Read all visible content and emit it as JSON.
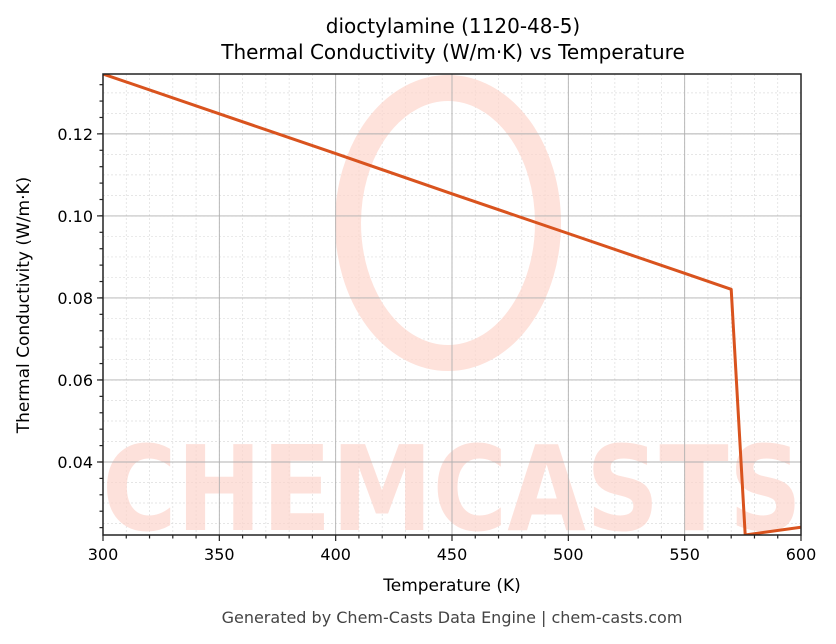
{
  "title_line1": "dioctylamine (1120-48-5)",
  "title_line2": "Thermal Conductivity (W/m·K) vs Temperature",
  "xlabel": "Temperature (K)",
  "ylabel": "Thermal Conductivity (W/m·K)",
  "footer": "Generated by Chem-Casts Data Engine | chem-casts.com",
  "watermark": "CHEMCASTS",
  "colors": {
    "line": "#d9531e",
    "watermark": "#fdd5cc",
    "grid_major": "#b0b0b0",
    "grid_minor": "#dddddd",
    "axis": "#222222"
  },
  "chart_data": {
    "type": "line",
    "title": "dioctylamine (1120-48-5) Thermal Conductivity (W/m·K) vs Temperature",
    "xlabel": "Temperature (K)",
    "ylabel": "Thermal Conductivity (W/m·K)",
    "xlim": [
      300,
      600
    ],
    "ylim": [
      0.0222,
      0.1346
    ],
    "x_ticks": [
      300,
      350,
      400,
      450,
      500,
      550,
      600
    ],
    "x_tick_labels": [
      "300",
      "350",
      "400",
      "450",
      "500",
      "550",
      "600"
    ],
    "y_ticks": [
      0.04,
      0.06,
      0.08,
      0.1,
      0.12
    ],
    "y_tick_labels": [
      "0.04",
      "0.06",
      "0.08",
      "0.10",
      "0.12"
    ],
    "grid": true,
    "legend": null,
    "series": [
      {
        "name": "Thermal Conductivity",
        "x": [
          300,
          350,
          400,
          450,
          500,
          550,
          570,
          576,
          600
        ],
        "y": [
          0.1346,
          0.1249,
          0.1152,
          0.1054,
          0.0957,
          0.086,
          0.0821,
          0.0222,
          0.0241
        ]
      }
    ]
  }
}
